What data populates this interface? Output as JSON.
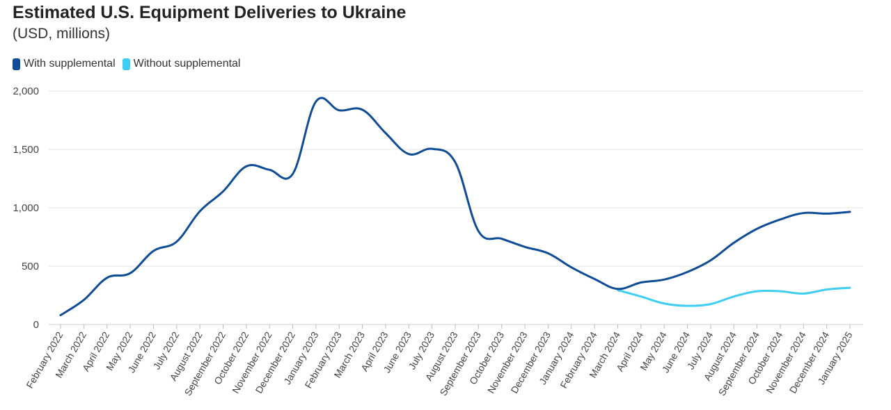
{
  "header": {
    "title": "Estimated U.S. Equipment Deliveries to Ukraine",
    "subtitle": "(USD, millions)"
  },
  "colors": {
    "with": "#0f4c97",
    "without": "#3fcdf2",
    "grid": "#e4e4e4"
  },
  "chart_data": {
    "type": "line",
    "title": "Estimated U.S. Equipment Deliveries to Ukraine",
    "subtitle": "(USD, millions)",
    "xlabel": "",
    "ylabel": "",
    "ylim": [
      0,
      2000
    ],
    "yticks": [
      0,
      500,
      1000,
      1500,
      2000
    ],
    "ytick_labels": [
      "0",
      "500",
      "1,000",
      "1,500",
      "2,000"
    ],
    "grid": true,
    "legend_position": "top-left",
    "categories": [
      "February 2022",
      "March 2022",
      "April 2022",
      "May 2022",
      "June 2022",
      "July 2022",
      "August 2022",
      "September 2022",
      "October 2022",
      "November 2022",
      "December 2022",
      "January 2023",
      "February 2023",
      "March 2023",
      "April 2023",
      "June 2023",
      "July 2023",
      "August 2023",
      "September 2023",
      "October 2023",
      "November 2023",
      "December 2023",
      "January 2024",
      "February 2024",
      "March 2024",
      "April 2024",
      "May 2024",
      "June 2024",
      "July 2024",
      "August 2024",
      "September 2024",
      "October 2024",
      "November 2024",
      "December 2024",
      "January 2025"
    ],
    "series": [
      {
        "name": "With supplemental",
        "color": "#0f4c97",
        "values": [
          80,
          210,
          400,
          440,
          630,
          710,
          970,
          1140,
          1355,
          1325,
          1290,
          1910,
          1835,
          1840,
          1640,
          1460,
          1505,
          1390,
          800,
          735,
          665,
          610,
          490,
          390,
          305,
          360,
          385,
          450,
          550,
          700,
          820,
          900,
          955,
          950,
          965
        ]
      },
      {
        "name": "Without supplemental",
        "color": "#3fcdf2",
        "values": [
          null,
          null,
          null,
          null,
          null,
          null,
          null,
          null,
          null,
          null,
          null,
          null,
          null,
          null,
          null,
          null,
          null,
          null,
          null,
          null,
          null,
          null,
          null,
          null,
          295,
          240,
          180,
          160,
          175,
          240,
          285,
          285,
          265,
          300,
          315
        ]
      }
    ]
  }
}
